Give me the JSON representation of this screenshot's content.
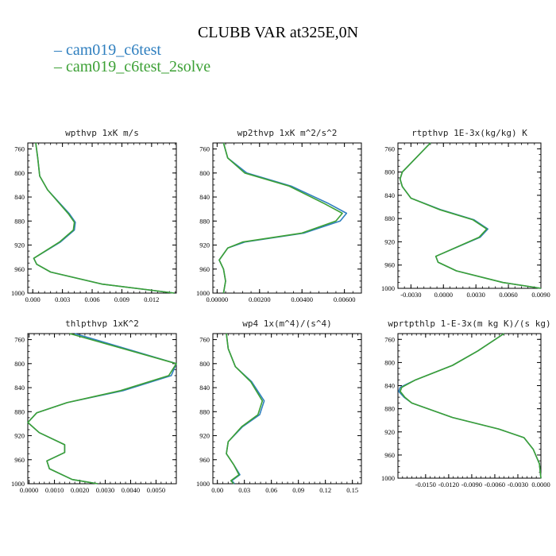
{
  "title": "CLUBB VAR at325E,0N",
  "legend": [
    {
      "name": "cam019_c6test",
      "color": "#2f7fbf"
    },
    {
      "name": "cam019_c6test_2solve",
      "color": "#3ca035"
    }
  ],
  "chart_data": [
    {
      "type": "line",
      "title": "wpthvp  1xK m/s",
      "xlim": [
        -0.0005,
        0.0145
      ],
      "ylim": [
        1000,
        750
      ],
      "xticks": [
        0.0,
        0.003,
        0.006,
        0.009,
        0.012
      ],
      "xtick_labels": [
        "0.000",
        "0.003",
        "0.006",
        "0.009",
        "0.012"
      ],
      "yticks": [
        760,
        800,
        840,
        880,
        920,
        960,
        1000
      ],
      "ytick_labels": [
        "760",
        "800",
        "840",
        "880",
        "920",
        "960",
        "1000"
      ],
      "series": [
        {
          "name": "cam019_c6test",
          "x": [
            0.0003,
            0.0005,
            0.0007,
            0.0015,
            0.0037,
            0.0043,
            0.0042,
            0.0028,
            0.0001,
            0.0004,
            0.0018,
            0.007,
            0.0143
          ],
          "y": [
            750,
            775,
            805,
            828,
            868,
            882,
            895,
            915,
            942,
            952,
            965,
            985,
            1000
          ]
        },
        {
          "name": "cam019_c6test_2solve",
          "x": [
            0.0003,
            0.0005,
            0.0007,
            0.0015,
            0.0036,
            0.0042,
            0.0041,
            0.0027,
            0.0001,
            0.0004,
            0.0018,
            0.007,
            0.0143
          ],
          "y": [
            750,
            775,
            805,
            828,
            868,
            882,
            895,
            915,
            942,
            952,
            965,
            985,
            1000
          ]
        }
      ]
    },
    {
      "type": "line",
      "title": "wp2thvp  1xK m^2/s^2",
      "xlim": [
        -0.0002,
        0.0068
      ],
      "ylim": [
        1000,
        750
      ],
      "xticks": [
        0.0,
        0.002,
        0.004,
        0.006
      ],
      "xtick_labels": [
        "0.00000",
        "0.00200",
        "0.00400",
        "0.00600"
      ],
      "yticks": [
        760,
        800,
        840,
        880,
        920,
        960,
        1000
      ],
      "ytick_labels": [
        "760",
        "800",
        "840",
        "880",
        "920",
        "960",
        "1000"
      ],
      "series": [
        {
          "name": "cam019_c6test",
          "x": [
            0.0003,
            0.0005,
            0.0014,
            0.0035,
            0.0052,
            0.0061,
            0.0058,
            0.0041,
            0.0013,
            0.0005,
            0.0001,
            0.0003,
            0.0004,
            0.0003
          ],
          "y": [
            750,
            775,
            800,
            822,
            850,
            867,
            880,
            900,
            915,
            925,
            945,
            960,
            980,
            1000
          ]
        },
        {
          "name": "cam019_c6test_2solve",
          "x": [
            0.0003,
            0.0005,
            0.0013,
            0.0034,
            0.005,
            0.0059,
            0.0056,
            0.004,
            0.0012,
            0.0005,
            0.0001,
            0.0003,
            0.0004,
            0.0003
          ],
          "y": [
            750,
            775,
            800,
            822,
            850,
            867,
            880,
            900,
            915,
            925,
            945,
            960,
            980,
            1000
          ]
        }
      ]
    },
    {
      "type": "line",
      "title": "rtpthvp  1E-3x(kg/kg) K",
      "xlim": [
        -0.0042,
        0.009
      ],
      "ylim": [
        1000,
        750
      ],
      "xticks": [
        -0.003,
        0.0,
        0.003,
        0.006,
        0.009
      ],
      "xtick_labels": [
        "-0.0030",
        "0.0000",
        "0.0030",
        "0.0060",
        "0.0090"
      ],
      "yticks": [
        760,
        800,
        840,
        880,
        920,
        960,
        1000
      ],
      "ytick_labels": [
        "760",
        "800",
        "840",
        "880",
        "920",
        "960",
        "1000"
      ],
      "series": [
        {
          "name": "cam019_c6test",
          "x": [
            -0.0012,
            -0.0025,
            -0.0038,
            -0.004,
            -0.0038,
            -0.003,
            -0.0002,
            0.0028,
            0.0041,
            0.0034,
            -0.0007,
            -0.0005,
            0.0012,
            0.0055,
            0.009
          ],
          "y": [
            750,
            775,
            800,
            812,
            825,
            845,
            865,
            882,
            898,
            912,
            945,
            955,
            970,
            990,
            1000
          ]
        },
        {
          "name": "cam019_c6test_2solve",
          "x": [
            -0.0012,
            -0.0025,
            -0.0038,
            -0.004,
            -0.0038,
            -0.003,
            -0.0003,
            0.0027,
            0.004,
            0.0033,
            -0.0007,
            -0.0005,
            0.0012,
            0.0055,
            0.009
          ],
          "y": [
            750,
            775,
            800,
            812,
            825,
            845,
            865,
            882,
            898,
            912,
            945,
            955,
            970,
            990,
            1000
          ]
        }
      ]
    },
    {
      "type": "line",
      "title": "thlpthvp  1xK^2",
      "xlim": [
        -5e-05,
        0.0058
      ],
      "ylim": [
        1000,
        750
      ],
      "xticks": [
        0.0,
        0.001,
        0.002,
        0.003,
        0.004,
        0.005
      ],
      "xtick_labels": [
        "0.0000",
        "0.0010",
        "0.0020",
        "0.0030",
        "0.0040",
        "0.0050"
      ],
      "yticks": [
        760,
        800,
        840,
        880,
        920,
        960,
        1000
      ],
      "ytick_labels": [
        "760",
        "800",
        "840",
        "880",
        "920",
        "960",
        "1000"
      ],
      "series": [
        {
          "name": "cam019_c6test",
          "x": [
            0.0018,
            0.0058,
            0.0056,
            0.0037,
            0.0015,
            0.0003,
            -5e-05,
            0.0004,
            0.0014,
            0.0014,
            0.0007,
            0.0008,
            0.0017,
            0.0027
          ],
          "y": [
            750,
            800,
            820,
            845,
            865,
            882,
            898,
            915,
            935,
            948,
            962,
            975,
            993,
            1000
          ]
        },
        {
          "name": "cam019_c6test_2solve",
          "x": [
            0.0016,
            0.0058,
            0.0055,
            0.0036,
            0.0015,
            0.0003,
            -5e-05,
            0.0004,
            0.0014,
            0.0014,
            0.0007,
            0.0008,
            0.0017,
            0.0027
          ],
          "y": [
            750,
            800,
            820,
            845,
            865,
            882,
            898,
            915,
            935,
            948,
            962,
            975,
            993,
            1000
          ]
        }
      ]
    },
    {
      "type": "line",
      "title": "wp4  1x(m^4)/(s^4)",
      "xlim": [
        -0.005,
        0.16
      ],
      "ylim": [
        1000,
        750
      ],
      "xticks": [
        0.0,
        0.03,
        0.06,
        0.09,
        0.12,
        0.15
      ],
      "xtick_labels": [
        "0.00",
        "0.03",
        "0.06",
        "0.09",
        "0.12",
        "0.15"
      ],
      "yticks": [
        760,
        800,
        840,
        880,
        920,
        960,
        1000
      ],
      "ytick_labels": [
        "760",
        "800",
        "840",
        "880",
        "920",
        "960",
        "1000"
      ],
      "series": [
        {
          "name": "cam019_c6test",
          "x": [
            0.01,
            0.012,
            0.02,
            0.038,
            0.052,
            0.047,
            0.028,
            0.012,
            0.01,
            0.018,
            0.025,
            0.016,
            0.019
          ],
          "y": [
            750,
            775,
            805,
            830,
            862,
            885,
            905,
            930,
            950,
            968,
            985,
            995,
            1000
          ]
        },
        {
          "name": "cam019_c6test_2solve",
          "x": [
            0.01,
            0.012,
            0.02,
            0.037,
            0.05,
            0.045,
            0.027,
            0.012,
            0.01,
            0.018,
            0.024,
            0.015,
            0.018
          ],
          "y": [
            750,
            775,
            805,
            830,
            862,
            885,
            905,
            930,
            950,
            968,
            985,
            995,
            1000
          ]
        }
      ]
    },
    {
      "type": "line",
      "title": "wprtpthlp  1-E-3x(m kg K)/(s kg)",
      "xlim": [
        -0.0186,
        0.0
      ],
      "ylim": [
        1000,
        750
      ],
      "xticks": [
        -0.015,
        -0.012,
        -0.009,
        -0.006,
        -0.003,
        0.0
      ],
      "xtick_labels": [
        "-0.0150",
        "-0.0120",
        "-0.0090",
        "-0.0060",
        "-0.0030",
        "0.0000"
      ],
      "yticks": [
        760,
        800,
        840,
        880,
        920,
        960,
        1000
      ],
      "ytick_labels": [
        "760",
        "800",
        "840",
        "880",
        "920",
        "960",
        "1000"
      ],
      "series": [
        {
          "name": "cam019_c6test",
          "x": [
            -0.0048,
            -0.0082,
            -0.0115,
            -0.0163,
            -0.0183,
            -0.0185,
            -0.0178,
            -0.0168,
            -0.0115,
            -0.0055,
            -0.0022,
            -0.001,
            -0.0002,
            0.0
          ],
          "y": [
            750,
            780,
            805,
            830,
            843,
            850,
            860,
            870,
            895,
            915,
            930,
            950,
            975,
            1000
          ]
        },
        {
          "name": "cam019_c6test_2solve",
          "x": [
            -0.0048,
            -0.0082,
            -0.0115,
            -0.0163,
            -0.0181,
            -0.0183,
            -0.0177,
            -0.0168,
            -0.0115,
            -0.0055,
            -0.0022,
            -0.001,
            -0.0002,
            0.0
          ],
          "y": [
            750,
            780,
            805,
            830,
            843,
            850,
            860,
            870,
            895,
            915,
            930,
            950,
            975,
            1000
          ]
        }
      ]
    }
  ]
}
